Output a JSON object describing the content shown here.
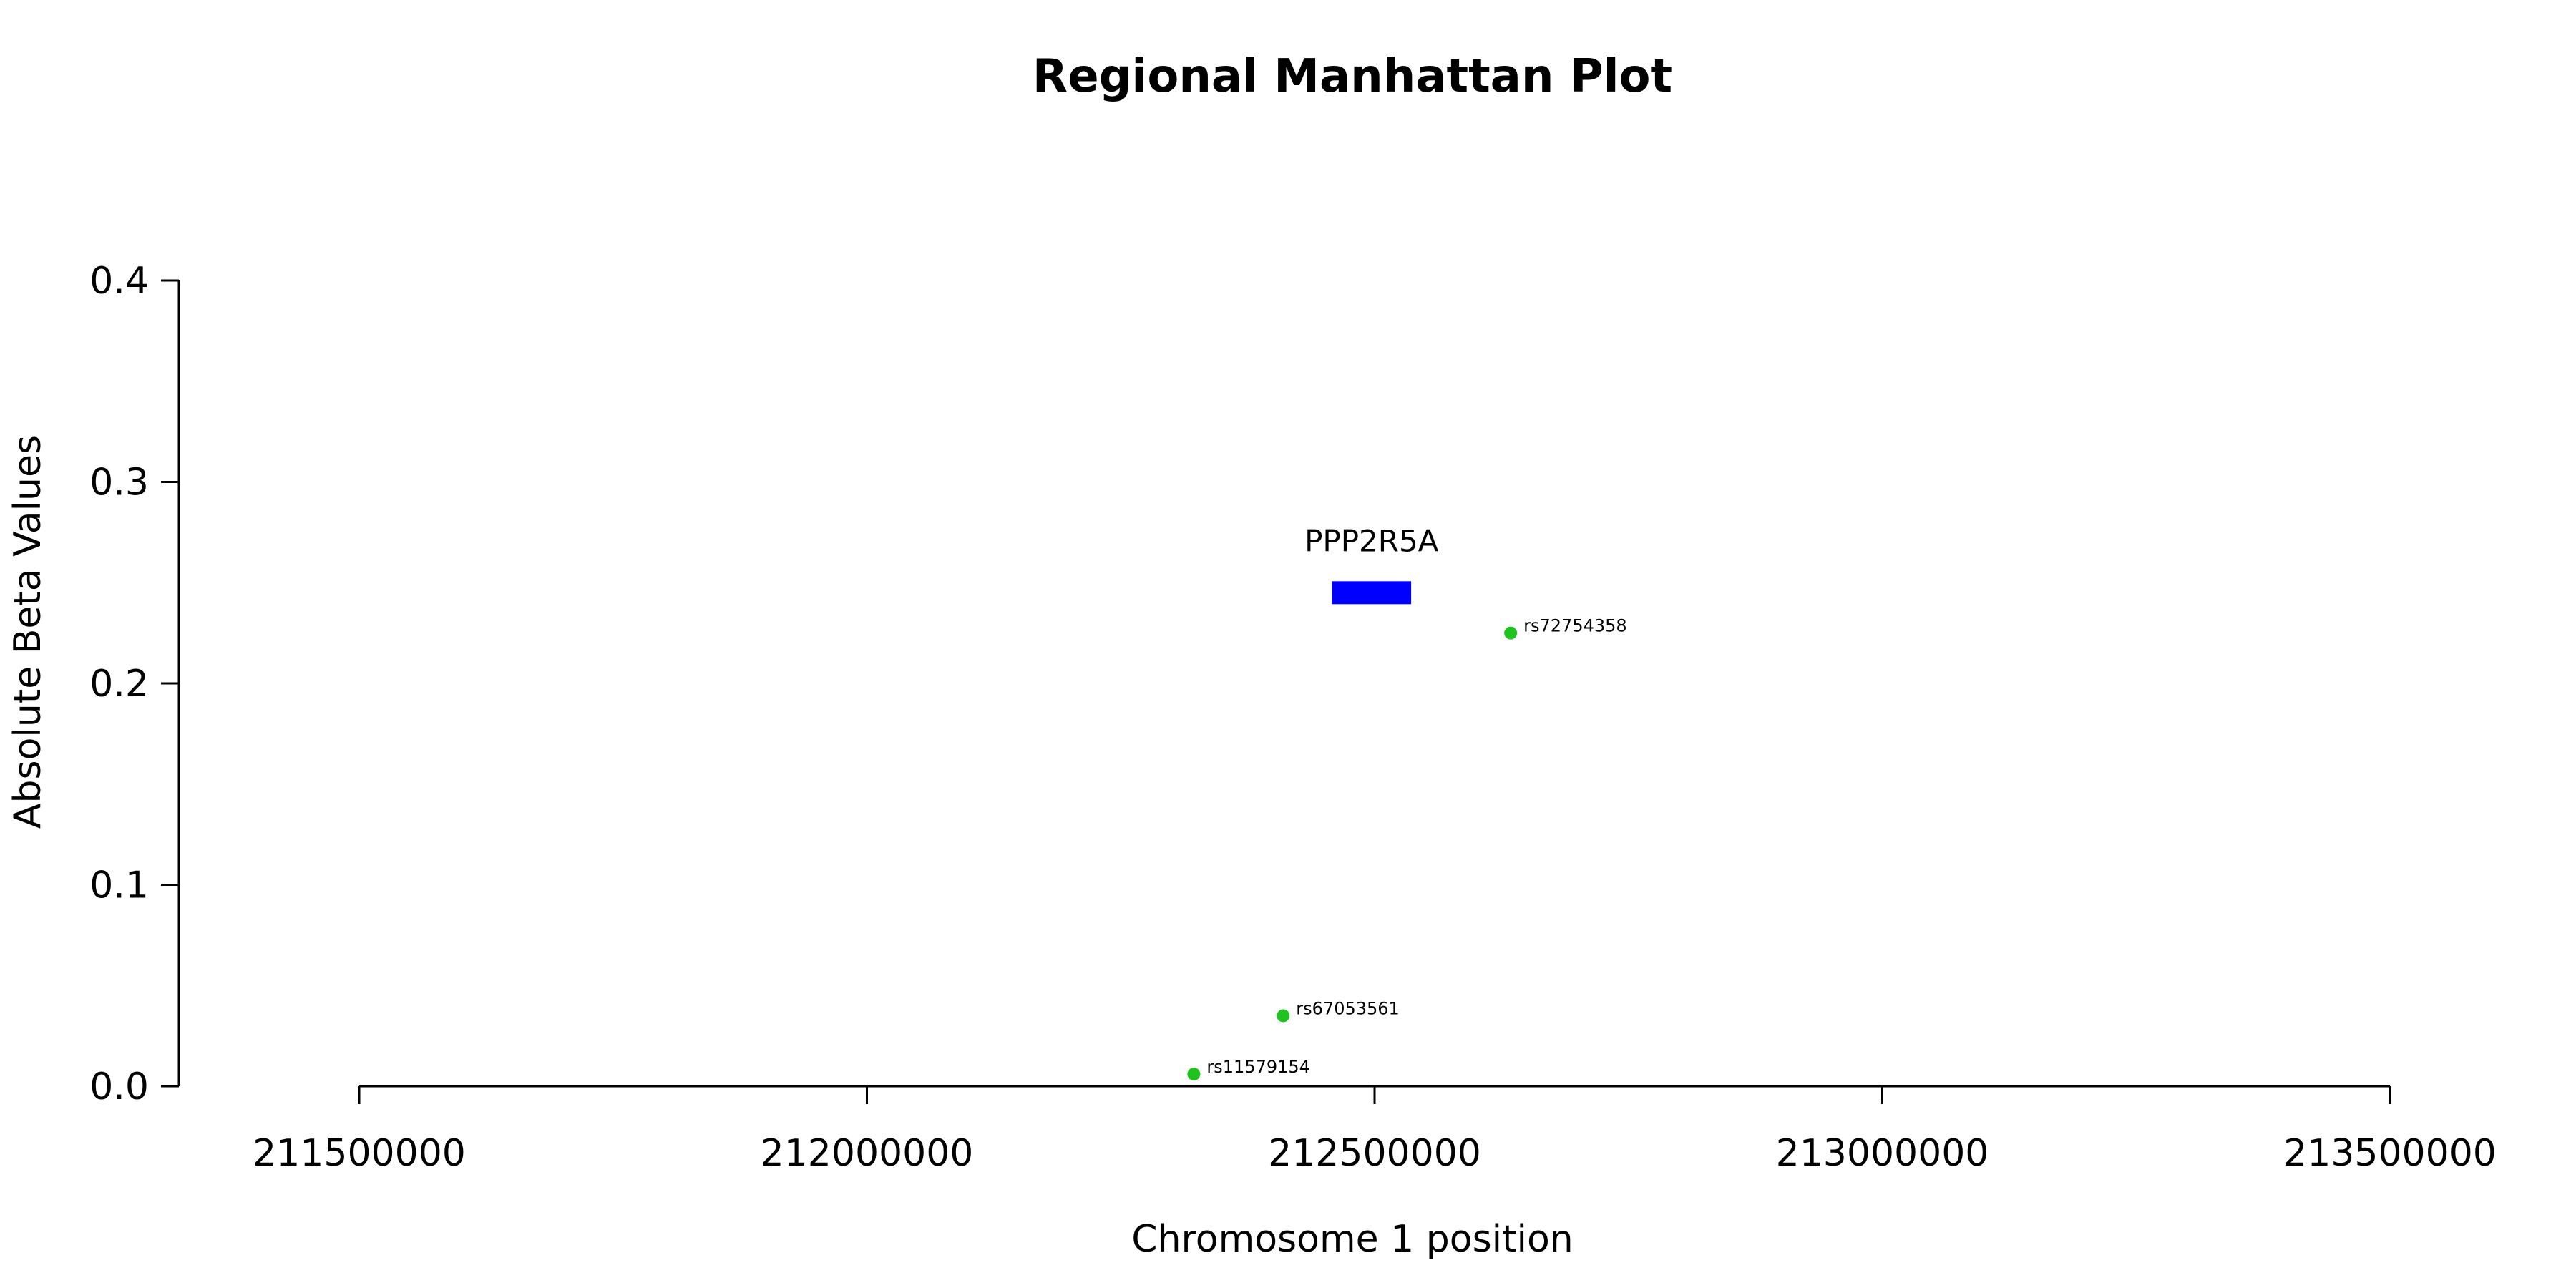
{
  "chart_data": {
    "type": "scatter",
    "title": "Regional Manhattan Plot",
    "xlabel": "Chromosome 1 position",
    "ylabel": "Absolute Beta Values",
    "xlim": [
      211500000,
      213500000
    ],
    "ylim": [
      0,
      0.4
    ],
    "x_ticks": [
      211500000,
      212000000,
      212500000,
      213000000,
      213500000
    ],
    "x_tick_labels": [
      "211500000",
      "212000000",
      "212500000",
      "213000000",
      "213500000"
    ],
    "y_ticks": [
      0,
      0.1,
      0.2,
      0.3,
      0.4
    ],
    "y_tick_labels": [
      "0.0",
      "0.1",
      "0.2",
      "0.3",
      "0.4"
    ],
    "grid": false,
    "points": [
      {
        "label": "rs11579154",
        "x": 212322000,
        "y": 0.006
      },
      {
        "label": "rs67053561",
        "x": 212410000,
        "y": 0.035
      },
      {
        "label": "rs72754358",
        "x": 212634000,
        "y": 0.225
      }
    ],
    "point_color": "#1fc21f",
    "gene": {
      "name": "PPP2R5A",
      "start": 212458000,
      "end": 212536000,
      "y": 0.245,
      "color": "#0000ff"
    }
  }
}
